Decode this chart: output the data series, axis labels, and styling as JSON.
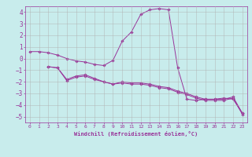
{
  "xlabel": "Windchill (Refroidissement éolien,°C)",
  "bg_color": "#c8ecec",
  "grid_color": "#b0b0b0",
  "line_color": "#993399",
  "xlim": [
    -0.5,
    23.5
  ],
  "ylim": [
    -5.5,
    4.5
  ],
  "yticks": [
    -5,
    -4,
    -3,
    -2,
    -1,
    0,
    1,
    2,
    3,
    4
  ],
  "xticks": [
    0,
    1,
    2,
    3,
    4,
    5,
    6,
    7,
    8,
    9,
    10,
    11,
    12,
    13,
    14,
    15,
    16,
    17,
    18,
    19,
    20,
    21,
    22,
    23
  ],
  "line1_x": [
    0,
    1,
    2,
    3,
    4,
    5,
    6,
    7,
    8,
    9,
    10,
    11,
    12,
    13,
    14,
    15,
    16,
    17,
    18,
    19,
    20,
    21,
    22,
    23
  ],
  "line1_y": [
    0.6,
    0.6,
    0.5,
    0.3,
    0.0,
    -0.2,
    -0.3,
    -0.5,
    -0.6,
    -0.15,
    1.5,
    2.3,
    3.8,
    4.2,
    4.3,
    4.2,
    -0.8,
    -3.5,
    -3.6,
    -3.5,
    -3.5,
    -3.4,
    -3.5,
    -4.7
  ],
  "line2_x": [
    2,
    3,
    4,
    5,
    6,
    7,
    8,
    9,
    10,
    11,
    12,
    13,
    14,
    15,
    16,
    17,
    18,
    19,
    20,
    21,
    22,
    23
  ],
  "line2_y": [
    -0.7,
    -0.8,
    -1.8,
    -1.5,
    -1.4,
    -1.7,
    -2.0,
    -2.2,
    -2.0,
    -2.1,
    -2.1,
    -2.2,
    -2.4,
    -2.5,
    -2.8,
    -3.0,
    -3.3,
    -3.5,
    -3.5,
    -3.5,
    -3.3,
    -4.7
  ],
  "line3_x": [
    2,
    3,
    4,
    5,
    6,
    7,
    8,
    9,
    10,
    11,
    12,
    13,
    14,
    15,
    16,
    17,
    18,
    19,
    20,
    21,
    22,
    23
  ],
  "line3_y": [
    -0.7,
    -0.8,
    -1.9,
    -1.6,
    -1.5,
    -1.8,
    -2.0,
    -2.2,
    -2.1,
    -2.2,
    -2.2,
    -2.3,
    -2.5,
    -2.6,
    -2.9,
    -3.1,
    -3.4,
    -3.6,
    -3.6,
    -3.6,
    -3.4,
    -4.8
  ]
}
